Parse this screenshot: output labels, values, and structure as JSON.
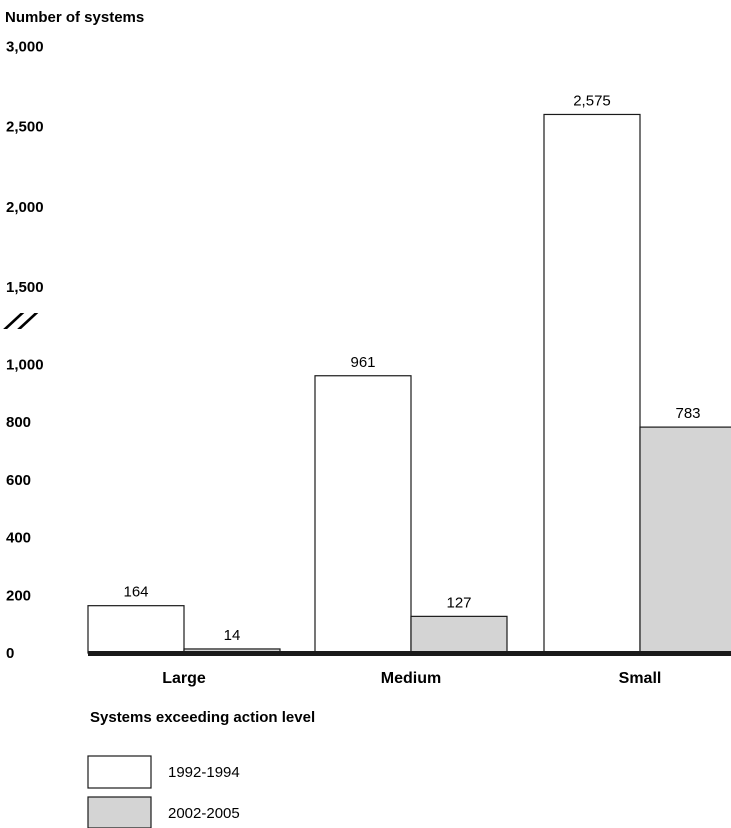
{
  "chart_data": {
    "type": "bar",
    "ylabel": "Number of systems",
    "xlabel": "Systems exceeding action level",
    "categories": [
      "Large",
      "Medium",
      "Small"
    ],
    "series": [
      {
        "name": "1992-1994",
        "color": "#ffffff",
        "values": [
          164,
          961,
          2575
        ],
        "labels": [
          "164",
          "961",
          "2,575"
        ]
      },
      {
        "name": "2002-2005",
        "color": "#d4d4d4",
        "values": [
          14,
          127,
          783
        ],
        "labels": [
          "14",
          "127",
          "783"
        ]
      }
    ],
    "y_ticks": [
      {
        "value": 0,
        "label": "0"
      },
      {
        "value": 200,
        "label": "200"
      },
      {
        "value": 400,
        "label": "400"
      },
      {
        "value": 600,
        "label": "600"
      },
      {
        "value": 800,
        "label": "800"
      },
      {
        "value": 1000,
        "label": "1,000"
      },
      {
        "value": 1500,
        "label": "1,500"
      },
      {
        "value": 2000,
        "label": "2,000"
      },
      {
        "value": 2500,
        "label": "2,500"
      },
      {
        "value": 3000,
        "label": "3,000"
      }
    ],
    "ylim": [
      0,
      3000
    ],
    "axis_break": {
      "between": [
        1000,
        1500
      ],
      "symbol": "//"
    },
    "grid": false,
    "legend_position": "bottom-left"
  }
}
